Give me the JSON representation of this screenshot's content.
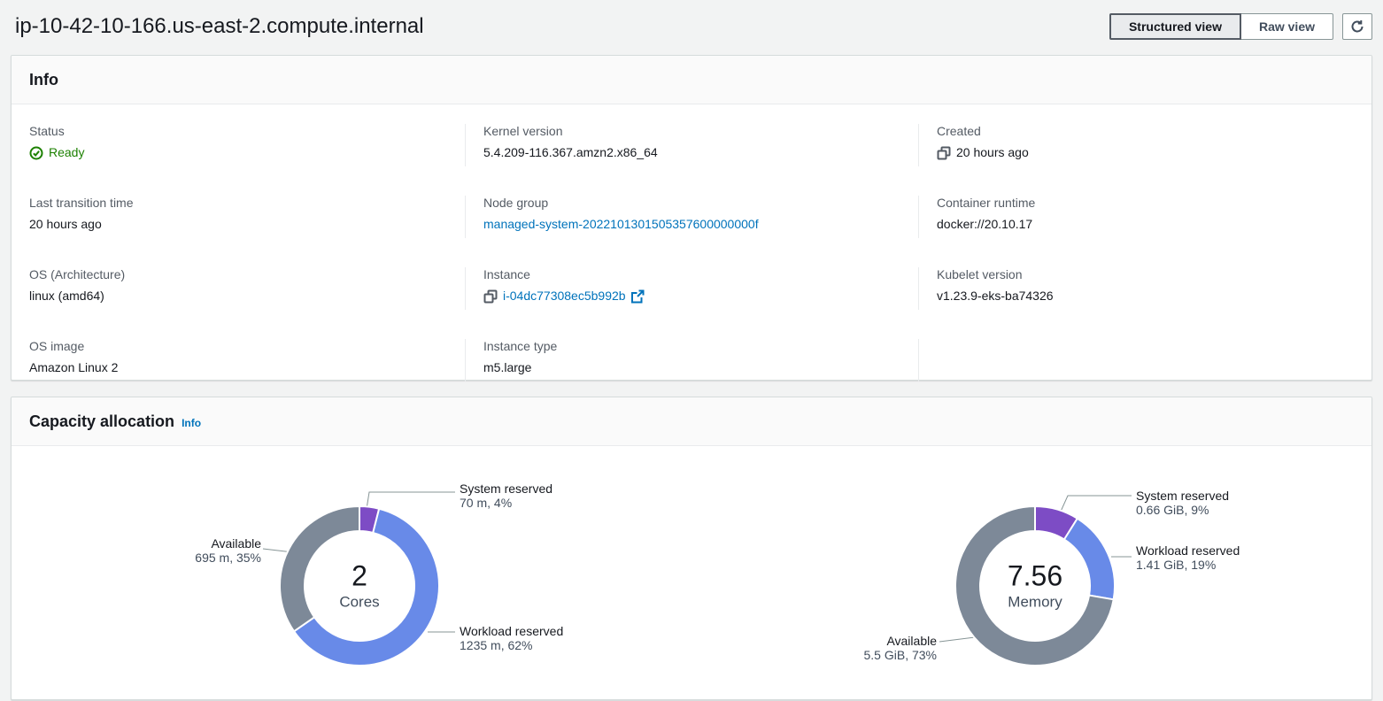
{
  "page": {
    "title": "ip-10-42-10-166.us-east-2.compute.internal"
  },
  "toolbar": {
    "structured_view_label": "Structured view",
    "raw_view_label": "Raw view",
    "refresh_icon": "refresh-icon"
  },
  "info_section": {
    "heading": "Info",
    "fields": {
      "status": {
        "label": "Status",
        "value": "Ready"
      },
      "kernel_version": {
        "label": "Kernel version",
        "value": "5.4.209-116.367.amzn2.x86_64"
      },
      "created": {
        "label": "Created",
        "value": "20 hours ago"
      },
      "last_transition_time": {
        "label": "Last transition time",
        "value": "20 hours ago"
      },
      "node_group": {
        "label": "Node group",
        "value": "managed-system-2022101301505357600000000f"
      },
      "container_runtime": {
        "label": "Container runtime",
        "value": "docker://20.10.17"
      },
      "os_architecture": {
        "label": "OS (Architecture)",
        "value": "linux (amd64)"
      },
      "instance": {
        "label": "Instance",
        "value": "i-04dc77308ec5b992b"
      },
      "kubelet_version": {
        "label": "Kubelet version",
        "value": "v1.23.9-eks-ba74326"
      },
      "os_image": {
        "label": "OS image",
        "value": "Amazon Linux 2"
      },
      "instance_type": {
        "label": "Instance type",
        "value": "m5.large"
      }
    }
  },
  "capacity_section": {
    "heading": "Capacity allocation",
    "info_link_label": "Info"
  },
  "chart_data": [
    {
      "type": "pie",
      "subtype": "donut",
      "name": "CPU capacity allocation",
      "center_value": "2",
      "center_label": "Cores",
      "legend_position": "callout-labels",
      "segments": [
        {
          "label": "System reserved",
          "value": 70,
          "unit": "m",
          "pct": 4,
          "value_text": "70 m, 4%",
          "color": "#7d4cc5"
        },
        {
          "label": "Workload reserved",
          "value": 1235,
          "unit": "m",
          "pct": 62,
          "value_text": "1235 m, 62%",
          "color": "#688ae8"
        },
        {
          "label": "Available",
          "value": 695,
          "unit": "m",
          "pct": 35,
          "value_text": "695 m, 35%",
          "color": "#7d8998"
        }
      ]
    },
    {
      "type": "pie",
      "subtype": "donut",
      "name": "Memory capacity allocation",
      "center_value": "7.56",
      "center_label": "Memory",
      "legend_position": "callout-labels",
      "segments": [
        {
          "label": "System reserved",
          "value": 0.66,
          "unit": "GiB",
          "pct": 9,
          "value_text": "0.66 GiB, 9%",
          "color": "#7d4cc5"
        },
        {
          "label": "Workload reserved",
          "value": 1.41,
          "unit": "GiB",
          "pct": 19,
          "value_text": "1.41 GiB, 19%",
          "color": "#688ae8"
        },
        {
          "label": "Available",
          "value": 5.5,
          "unit": "GiB",
          "pct": 73,
          "value_text": "5.5 GiB, 73%",
          "color": "#7d8998"
        }
      ]
    }
  ],
  "colors": {
    "link": "#0073bb",
    "status_ready_green": "#1d8102",
    "segment_system_reserved": "#7d4cc5",
    "segment_workload_reserved": "#688ae8",
    "segment_available": "#7d8998"
  }
}
